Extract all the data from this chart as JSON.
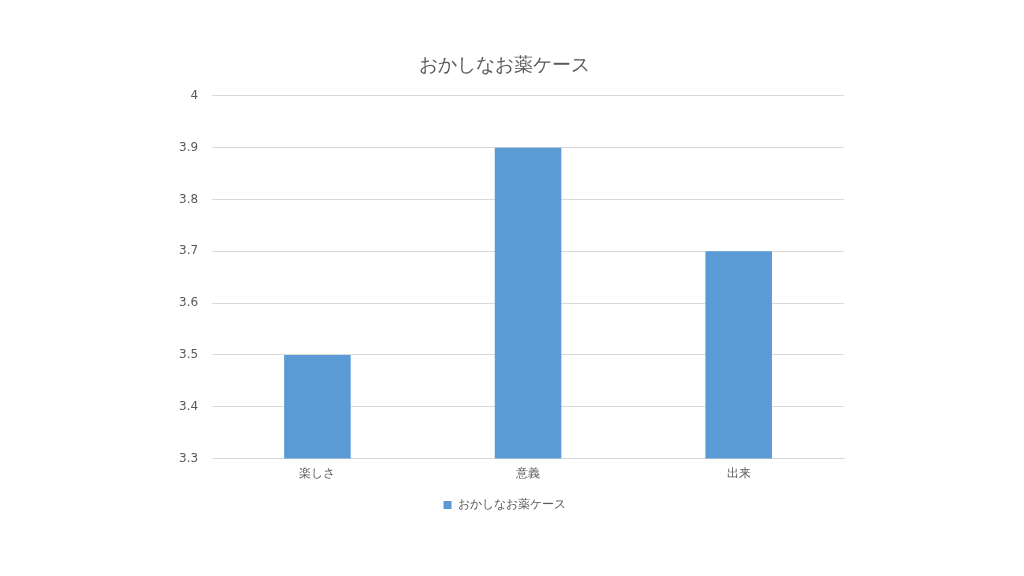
{
  "chart_data": {
    "type": "bar",
    "title": "おかしなお薬ケース",
    "categories": [
      "楽しさ",
      "意義",
      "出来"
    ],
    "series": [
      {
        "name": "おかしなお薬ケース",
        "color": "#5b9bd5",
        "values": [
          3.5,
          3.9,
          3.7
        ]
      }
    ],
    "ylim": [
      3.3,
      4
    ],
    "yticks": [
      3.3,
      3.4,
      3.5,
      3.6,
      3.7,
      3.8,
      3.9,
      4
    ],
    "grid": "y",
    "legend": "bottom"
  }
}
